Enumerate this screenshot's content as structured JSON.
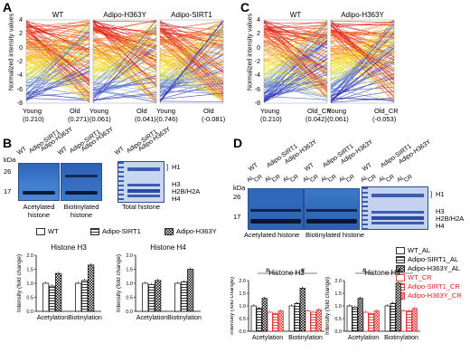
{
  "panels": {
    "A": {
      "letter": "A",
      "ylabel": "Normalized intensity values",
      "yticks": [
        "4",
        "2",
        "0",
        "-2",
        "-4",
        "-6",
        "-8"
      ],
      "groups": [
        {
          "title": "WT",
          "left": "Young",
          "left_val": "(0.210)",
          "right": "Old",
          "right_val": "(0.271)"
        },
        {
          "title": "Adipo-H363Y",
          "left": "Young",
          "left_val": "(0.061)",
          "right": "Old",
          "right_val": "(0.041)"
        },
        {
          "title": "Adipo-SIRT1",
          "left": "Young",
          "left_val": "(0.746)",
          "right": "Old",
          "right_val": "(-0.081)"
        }
      ]
    },
    "C": {
      "letter": "C",
      "ylabel": "Normalized intensity values",
      "yticks": [
        "4",
        "2",
        "0",
        "-2",
        "-4",
        "-6",
        "-8"
      ],
      "groups": [
        {
          "title": "WT",
          "left": "Young",
          "left_val": "(0.210)",
          "right": "Old_CR",
          "right_val": "(0.042)"
        },
        {
          "title": "Adipo-H363Y",
          "left": "Young",
          "left_val": "(0.061)",
          "right": "Old_CR",
          "right_val": "(-0.053)"
        }
      ]
    },
    "B": {
      "letter": "B",
      "kda": "kDa",
      "mw": [
        "26",
        "17"
      ],
      "lanes": [
        "WT",
        "Adipo-SIRT1",
        "Adipo-H363Y"
      ],
      "blot_labels": [
        "Acetylated histone",
        "Biotinylated histone",
        "Total histone"
      ],
      "histones": [
        "H1",
        "H3",
        "H2B/H2A",
        "H4"
      ],
      "legend": [
        "WT",
        "Adipo-SIRT1",
        "Adipo-H363Y"
      ],
      "charts": [
        {
          "title": "Histone H3",
          "ylabel": "Intensity (fold change)",
          "yticks": [
            "0.0",
            "0.5",
            "1.0",
            "1.5",
            "2.0"
          ],
          "cats": [
            "Acetylation",
            "Biotinylation"
          ]
        },
        {
          "title": "Histone H4",
          "ylabel": "Intensity (fold change)",
          "yticks": [
            "0.0",
            "0.5",
            "1.0",
            "1.5",
            "2.0"
          ],
          "cats": [
            "Acetylation",
            "Biotinylation"
          ]
        }
      ]
    },
    "D": {
      "letter": "D",
      "kda": "kDa",
      "mw": [
        "26",
        "17"
      ],
      "groups": [
        "WT",
        "Adipo-SIRT1",
        "Adipo-H363Y"
      ],
      "subs": [
        "AL",
        "CR"
      ],
      "blot_labels": [
        "Acetylated histone",
        "Biotinylated histone"
      ],
      "histones": [
        "H1",
        "H3",
        "H2B/H2A",
        "H4"
      ],
      "legend": [
        "WT_AL",
        "Adipo-SIRT1_AL",
        "Adipo-H363Y_AL",
        "WT_CR",
        "Adipo-SIRT1_CR",
        "Adipo-H363Y_CR"
      ],
      "sig": "#",
      "charts": [
        {
          "title": "Histone H3",
          "ylabel": "Intensity (fold change)",
          "yticks": [
            "0.0",
            "0.5",
            "1.0",
            "1.5",
            "2.0"
          ],
          "cats": [
            "Acetylation",
            "Biotinylation"
          ]
        },
        {
          "title": "Histone H4",
          "ylabel": "Intensity (fold change)",
          "yticks": [
            "0.0",
            "0.5",
            "1.0",
            "1.5",
            "2.0"
          ],
          "cats": [
            "Acetylation",
            "Biotinylation"
          ]
        }
      ]
    }
  },
  "chart_data": [
    {
      "type": "bar",
      "title": "Histone H3",
      "ylabel": "Intensity (fold change)",
      "ylim": [
        0,
        2
      ],
      "categories": [
        "Acetylation",
        "Biotinylation"
      ],
      "series": [
        {
          "name": "WT",
          "values": [
            1.0,
            1.0
          ]
        },
        {
          "name": "Adipo-SIRT1",
          "values": [
            0.9,
            1.1
          ]
        },
        {
          "name": "Adipo-H363Y",
          "values": [
            1.35,
            1.65
          ]
        }
      ]
    },
    {
      "type": "bar",
      "title": "Histone H4",
      "ylabel": "Intensity (fold change)",
      "ylim": [
        0,
        2
      ],
      "categories": [
        "Acetylation",
        "Biotinylation"
      ],
      "series": [
        {
          "name": "WT",
          "values": [
            1.0,
            1.0
          ]
        },
        {
          "name": "Adipo-SIRT1",
          "values": [
            0.95,
            1.05
          ]
        },
        {
          "name": "Adipo-H363Y",
          "values": [
            1.1,
            1.5
          ]
        }
      ]
    },
    {
      "type": "bar",
      "title": "Histone H3",
      "ylabel": "Intensity (fold change)",
      "ylim": [
        0,
        2
      ],
      "categories": [
        "Acetylation",
        "Biotinylation"
      ],
      "series": [
        {
          "name": "WT_AL",
          "values": [
            1.0,
            1.0
          ]
        },
        {
          "name": "Adipo-SIRT1_AL",
          "values": [
            0.9,
            1.1
          ]
        },
        {
          "name": "Adipo-H363Y_AL",
          "values": [
            1.3,
            1.7
          ]
        },
        {
          "name": "WT_CR",
          "values": [
            0.75,
            0.8
          ]
        },
        {
          "name": "Adipo-SIRT1_CR",
          "values": [
            0.7,
            0.75
          ]
        },
        {
          "name": "Adipo-H363Y_CR",
          "values": [
            0.8,
            0.85
          ]
        }
      ]
    },
    {
      "type": "bar",
      "title": "Histone H4",
      "ylabel": "Intensity (fold change)",
      "ylim": [
        0,
        2
      ],
      "categories": [
        "Acetylation",
        "Biotinylation"
      ],
      "series": [
        {
          "name": "WT_AL",
          "values": [
            1.0,
            1.0
          ]
        },
        {
          "name": "Adipo-SIRT1_AL",
          "values": [
            0.95,
            1.1
          ]
        },
        {
          "name": "Adipo-H363Y_AL",
          "values": [
            1.3,
            1.9
          ]
        },
        {
          "name": "WT_CR",
          "values": [
            0.75,
            0.8
          ]
        },
        {
          "name": "Adipo-SIRT1_CR",
          "values": [
            0.7,
            0.8
          ]
        },
        {
          "name": "Adipo-H363Y_CR",
          "values": [
            0.8,
            0.9
          ]
        }
      ]
    }
  ]
}
